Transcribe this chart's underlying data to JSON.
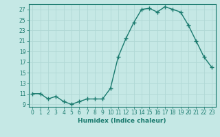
{
  "title": "",
  "xlabel": "Humidex (Indice chaleur)",
  "x": [
    0,
    1,
    2,
    3,
    4,
    5,
    6,
    7,
    8,
    9,
    10,
    11,
    12,
    13,
    14,
    15,
    16,
    17,
    18,
    19,
    20,
    21,
    22,
    23
  ],
  "y": [
    11,
    11,
    10,
    10.5,
    9.5,
    9,
    9.5,
    10,
    10,
    10,
    12,
    18,
    21.5,
    24.5,
    27,
    27.2,
    26.5,
    27.5,
    27,
    26.5,
    24,
    21,
    18,
    16
  ],
  "line_color": "#1a7a6e",
  "bg_color": "#c5e8e5",
  "grid_color": "#b0d8d5",
  "ylim": [
    8.5,
    28.0
  ],
  "yticks": [
    9,
    11,
    13,
    15,
    17,
    19,
    21,
    23,
    25,
    27
  ],
  "xlim": [
    -0.5,
    23.5
  ],
  "marker": "+",
  "marker_size": 4,
  "linewidth": 1.0,
  "tick_fontsize": 5.5,
  "xlabel_fontsize": 6.5
}
